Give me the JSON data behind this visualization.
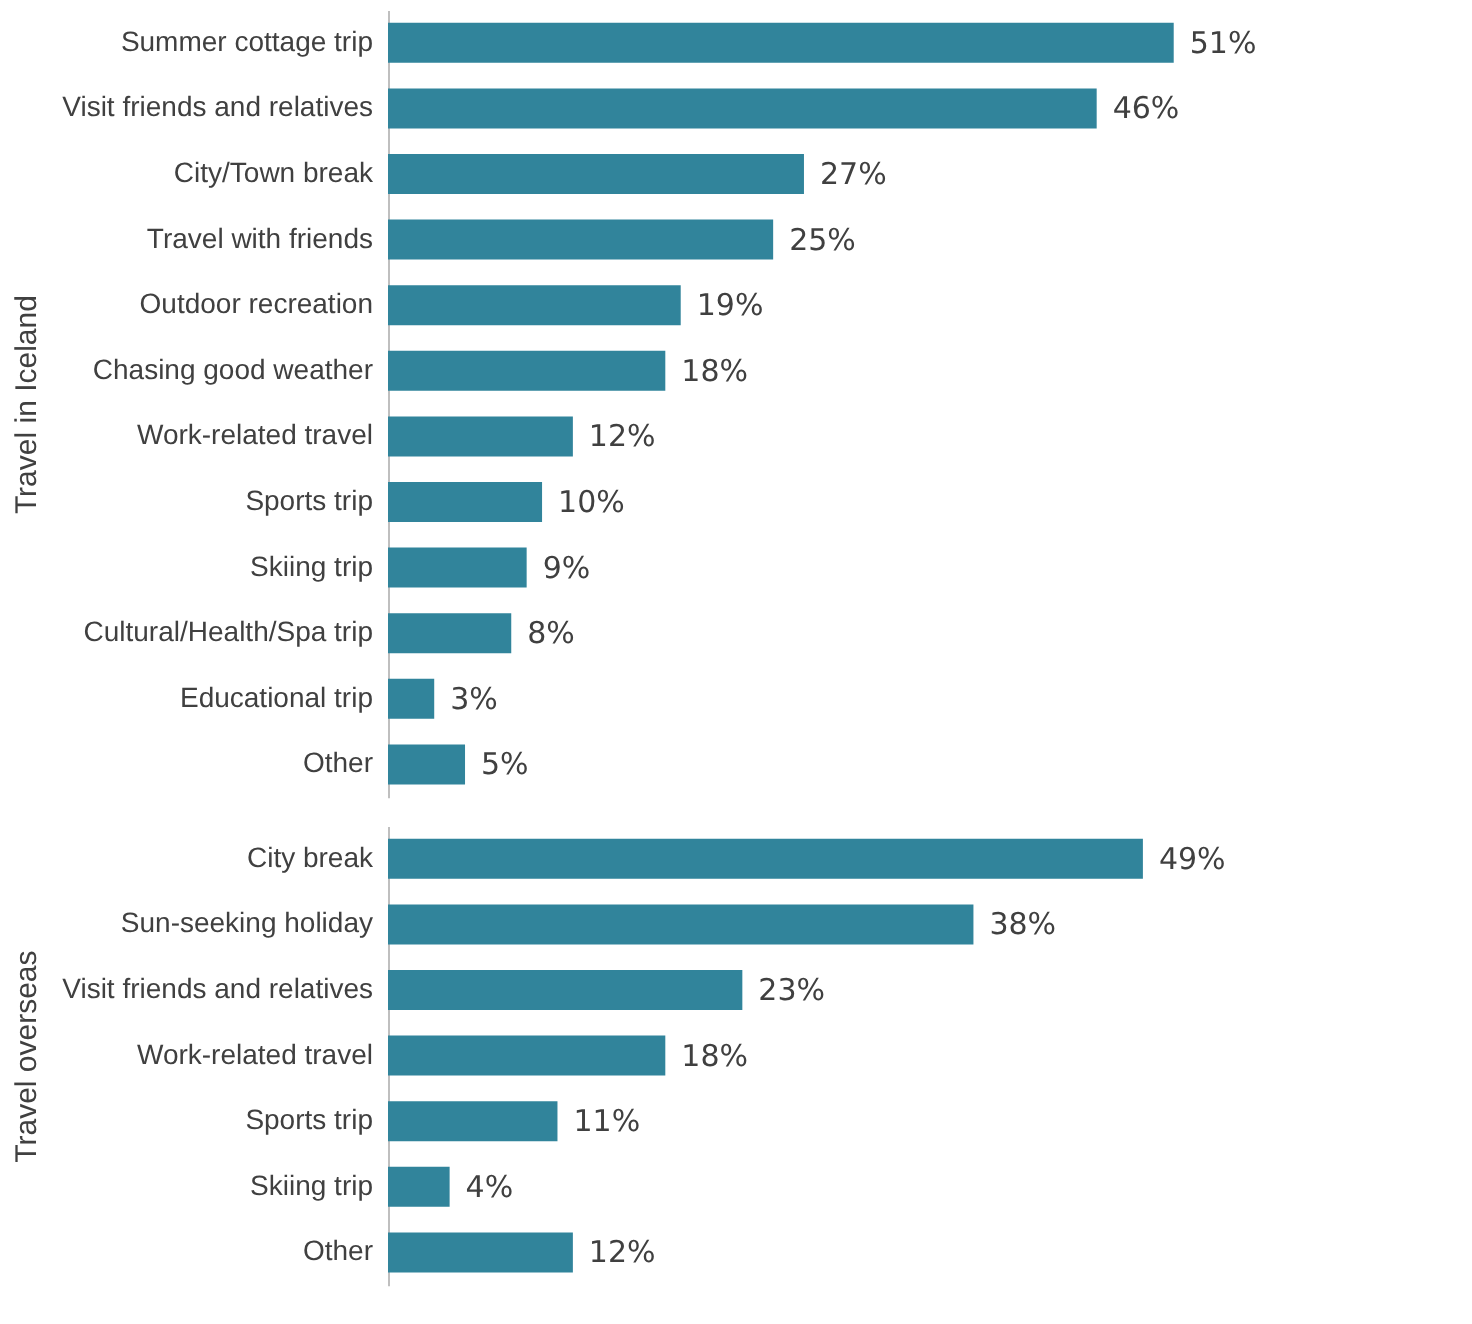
{
  "chart_data": [
    {
      "type": "bar",
      "orientation": "horizontal",
      "ylabel": "Travel in Iceland",
      "categories": [
        "Summer cottage trip",
        "Visit friends and relatives",
        "City/Town break",
        "Travel with friends",
        "Outdoor recreation",
        "Chasing good weather",
        "Work-related travel",
        "Sports trip",
        "Skiing trip",
        "Cultural/Health/Spa trip",
        "Educational trip",
        "Other"
      ],
      "values": [
        51,
        46,
        27,
        25,
        19,
        18,
        12,
        10,
        9,
        8,
        3,
        5
      ],
      "value_labels": [
        "51%",
        "46%",
        "27%",
        "25%",
        "19%",
        "18%",
        "12%",
        "10%",
        "9%",
        "8%",
        "3%",
        "5%"
      ],
      "color": "#31849b"
    },
    {
      "type": "bar",
      "orientation": "horizontal",
      "ylabel": "Travel overseas",
      "categories": [
        "City break",
        "Sun-seeking holiday",
        "Visit friends and relatives",
        "Work-related travel",
        "Sports trip",
        "Skiing trip",
        "Other"
      ],
      "values": [
        49,
        38,
        23,
        18,
        11,
        4,
        12
      ],
      "value_labels": [
        "49%",
        "38%",
        "23%",
        "18%",
        "11%",
        "4%",
        "12%"
      ],
      "color": "#31849b"
    }
  ]
}
